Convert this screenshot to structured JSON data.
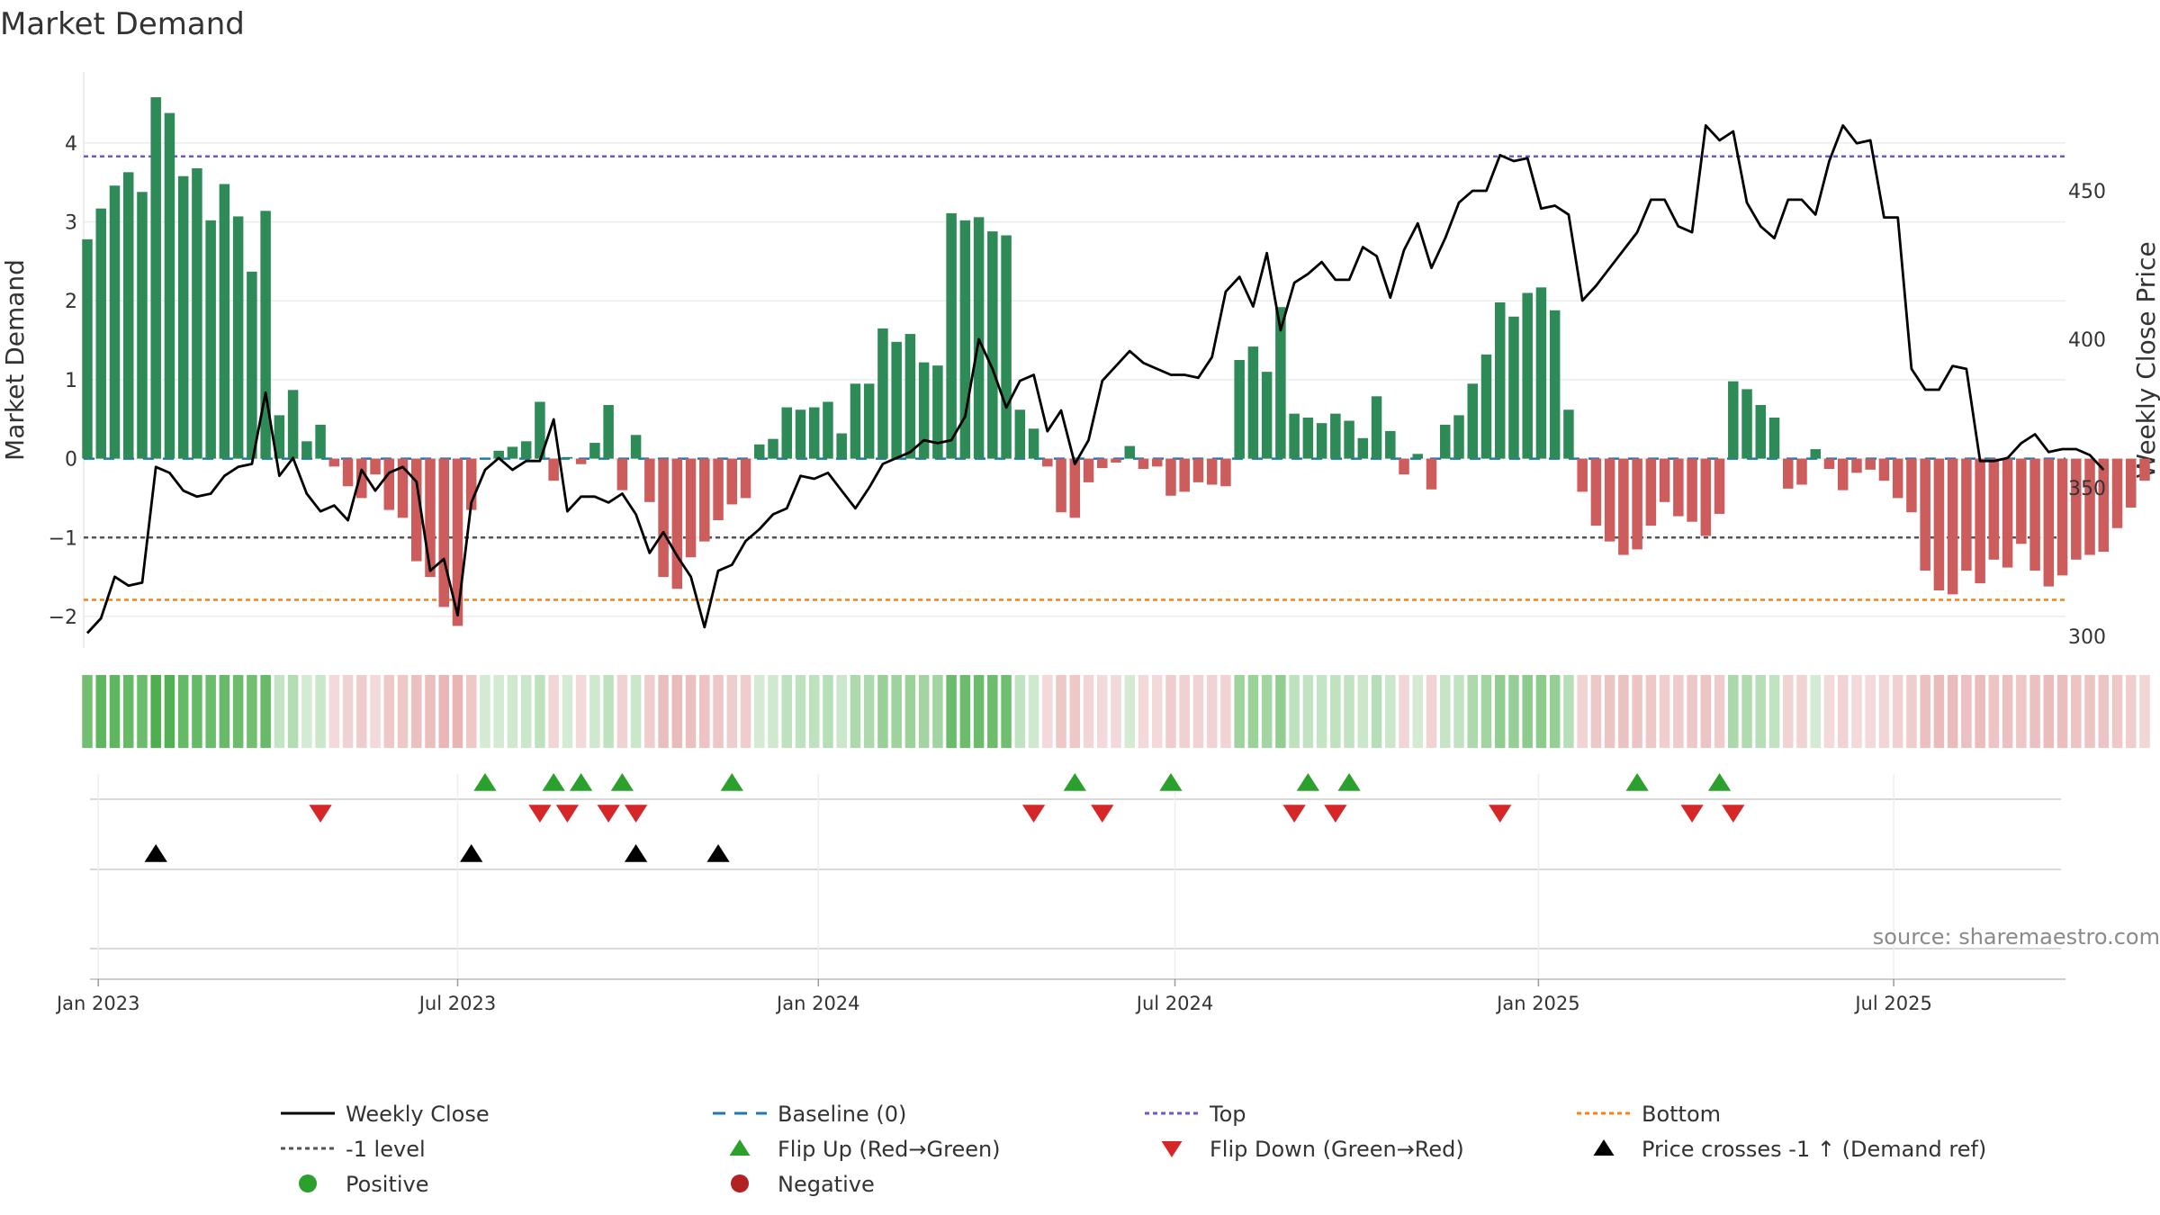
{
  "chart_data": {
    "type": "bar+line",
    "title": "Market Demand",
    "ylabel_left": "Market Demand",
    "ylabel_right": "Weekly Close Price",
    "ylim_left": [
      -2.4,
      4.9
    ],
    "ylim_right": [
      296,
      490
    ],
    "left_ticks": [
      "−2",
      "−1",
      "0",
      "1",
      "2",
      "3",
      "4"
    ],
    "left_tick_values": [
      -2,
      -1,
      0,
      1,
      2,
      3,
      4
    ],
    "right_ticks": [
      "300",
      "350",
      "400",
      "450"
    ],
    "right_tick_values": [
      300,
      350,
      400,
      450
    ],
    "x_ticks": [
      "Jan 2023",
      "Jul 2023",
      "Jan 2024",
      "Jul 2024",
      "Jan 2025",
      "Jul 2025"
    ],
    "x_tick_weeks": [
      0.8,
      27.0,
      53.3,
      79.3,
      105.8,
      131.7
    ],
    "reference_lines": {
      "top": 3.83,
      "bottom": -1.79,
      "minus_one": -1,
      "baseline": 0
    },
    "demand": [
      2.78,
      3.17,
      3.46,
      3.63,
      3.38,
      4.58,
      4.38,
      3.58,
      3.68,
      3.02,
      3.48,
      3.07,
      2.37,
      3.14,
      0.55,
      0.87,
      0.22,
      0.43,
      -0.1,
      -0.35,
      -0.5,
      -0.2,
      -0.65,
      -0.75,
      -1.3,
      -1.5,
      -1.88,
      -2.12,
      -0.65,
      0.0,
      0.1,
      0.15,
      0.22,
      0.72,
      -0.28,
      0.02,
      -0.07,
      0.2,
      0.68,
      -0.4,
      0.3,
      -0.55,
      -1.5,
      -1.65,
      -1.25,
      -1.05,
      -0.78,
      -0.58,
      -0.5,
      0.18,
      0.25,
      0.65,
      0.62,
      0.65,
      0.72,
      0.32,
      0.95,
      0.95,
      1.65,
      1.48,
      1.58,
      1.22,
      1.18,
      3.11,
      3.02,
      3.06,
      2.88,
      2.83,
      0.62,
      0.38,
      -0.1,
      -0.68,
      -0.75,
      -0.3,
      -0.12,
      -0.05,
      0.16,
      -0.13,
      -0.1,
      -0.47,
      -0.42,
      -0.3,
      -0.33,
      -0.35,
      1.25,
      1.42,
      1.1,
      1.92,
      0.57,
      0.52,
      0.45,
      0.57,
      0.48,
      0.26,
      0.79,
      0.35,
      -0.2,
      0.06,
      -0.39,
      0.43,
      0.55,
      0.95,
      1.32,
      1.98,
      1.8,
      2.1,
      2.17,
      1.88,
      0.62,
      -0.42,
      -0.85,
      -1.05,
      -1.22,
      -1.15,
      -0.85,
      -0.55,
      -0.73,
      -0.8,
      -0.98,
      -0.7,
      0.98,
      0.88,
      0.68,
      0.52,
      -0.38,
      -0.33,
      0.12,
      -0.13,
      -0.4,
      -0.18,
      -0.14,
      -0.28,
      -0.5,
      -0.68,
      -1.42,
      -1.67,
      -1.72,
      -1.42,
      -1.58,
      -1.28,
      -1.38,
      -1.08,
      -1.42,
      -1.62,
      -1.48,
      -1.28,
      -1.22,
      -1.18,
      -0.88,
      -0.62,
      -0.28
    ],
    "close": [
      301,
      306,
      320,
      317,
      318,
      357,
      355,
      349,
      347,
      348,
      354,
      357,
      358,
      382,
      354,
      360,
      348,
      342,
      344,
      339,
      356,
      349,
      355,
      357,
      352,
      322,
      326,
      307,
      345,
      356,
      360,
      356,
      359,
      359,
      373,
      342,
      347,
      347,
      345,
      348,
      341,
      328,
      335,
      327,
      320,
      303,
      322,
      324,
      332,
      336,
      341,
      343,
      354,
      353,
      355,
      349,
      343,
      350,
      358,
      360,
      362,
      366,
      365,
      366,
      374,
      400,
      390,
      377,
      386,
      388,
      369,
      376,
      358,
      366,
      386,
      391,
      396,
      392,
      390,
      388,
      388,
      387,
      394,
      416,
      421,
      411,
      429,
      403,
      419,
      422,
      426,
      420,
      420,
      431,
      428,
      414,
      430,
      439,
      424,
      434,
      446,
      450,
      450,
      462,
      460,
      461,
      444,
      445,
      442,
      413,
      418,
      424,
      430,
      436,
      447,
      447,
      438,
      436,
      472,
      467,
      470,
      446,
      438,
      434,
      447,
      447,
      442,
      460,
      472,
      466,
      467,
      441,
      441,
      390,
      383,
      383,
      391,
      390,
      359,
      359,
      360,
      365,
      368,
      362,
      363,
      363,
      361,
      356
    ],
    "heat_strip": [
      0.62,
      0.7,
      0.7,
      0.68,
      0.65,
      0.78,
      0.76,
      0.68,
      0.68,
      0.65,
      0.67,
      0.65,
      0.62,
      0.67,
      0.25,
      0.32,
      0.18,
      0.22,
      -0.2,
      -0.25,
      -0.28,
      -0.2,
      -0.3,
      -0.3,
      -0.35,
      -0.36,
      -0.4,
      -0.42,
      -0.3,
      0.18,
      0.18,
      0.2,
      0.22,
      0.28,
      -0.22,
      0.18,
      -0.2,
      0.2,
      0.28,
      -0.25,
      0.22,
      -0.28,
      -0.36,
      -0.38,
      -0.35,
      -0.33,
      -0.31,
      -0.28,
      -0.28,
      0.18,
      0.2,
      0.28,
      0.28,
      0.28,
      0.3,
      0.22,
      0.35,
      0.35,
      0.45,
      0.42,
      0.44,
      0.4,
      0.4,
      0.66,
      0.65,
      0.65,
      0.64,
      0.63,
      0.26,
      0.2,
      -0.2,
      -0.3,
      -0.3,
      -0.22,
      -0.2,
      -0.2,
      0.18,
      -0.2,
      -0.2,
      -0.28,
      -0.26,
      -0.24,
      -0.24,
      -0.24,
      0.42,
      0.44,
      0.4,
      0.48,
      0.28,
      0.26,
      0.25,
      0.27,
      0.26,
      0.22,
      0.3,
      0.22,
      -0.22,
      0.18,
      -0.24,
      0.24,
      0.26,
      0.35,
      0.4,
      0.48,
      0.46,
      0.5,
      0.5,
      0.46,
      0.3,
      -0.24,
      -0.3,
      -0.32,
      -0.34,
      -0.33,
      -0.3,
      -0.27,
      -0.29,
      -0.3,
      -0.32,
      -0.29,
      0.36,
      0.34,
      0.3,
      0.26,
      -0.24,
      -0.24,
      0.18,
      -0.2,
      -0.24,
      -0.2,
      -0.2,
      -0.22,
      -0.26,
      -0.28,
      -0.35,
      -0.38,
      -0.38,
      -0.35,
      -0.37,
      -0.33,
      -0.35,
      -0.31,
      -0.35,
      -0.37,
      -0.36,
      -0.33,
      -0.32,
      -0.32,
      -0.3,
      -0.27,
      -0.22
    ],
    "flip_up_weeks": [
      29,
      34,
      36,
      39,
      47,
      72,
      79,
      89,
      92,
      113,
      119
    ],
    "flip_down_weeks": [
      17,
      33,
      35,
      38,
      40,
      69,
      74,
      88,
      91,
      103,
      117,
      120
    ],
    "cross_up_weeks": [
      5,
      28,
      40,
      46
    ],
    "legend": [
      {
        "label": "Weekly Close",
        "style": "line",
        "color": "#000000"
      },
      {
        "label": "Baseline (0)",
        "style": "dashed",
        "color": "#1f77b4"
      },
      {
        "label": "Top",
        "style": "dotted",
        "color": "#6a5acd"
      },
      {
        "label": "Bottom",
        "style": "dotted",
        "color": "#ff7f0e"
      },
      {
        "label": "-1 level",
        "style": "dotted",
        "color": "#555555"
      },
      {
        "label": "Flip Up (Red→Green)",
        "style": "triangle-up",
        "color": "#2ca02c"
      },
      {
        "label": "Flip Down (Green→Red)",
        "style": "triangle-down",
        "color": "#d62728"
      },
      {
        "label": "Price crosses -1 ↑ (Demand ref)",
        "style": "triangle-up",
        "color": "#000000"
      },
      {
        "label": "Positive",
        "style": "circle",
        "color": "#2ca02c"
      },
      {
        "label": "Negative",
        "style": "circle",
        "color": "#b22222"
      }
    ],
    "colors": {
      "positive": "#2e8b57",
      "negative": "#cd5c5c",
      "line": "#000000",
      "top": "#6a5acd",
      "bottom": "#ff7f0e",
      "minus_one": "#555555",
      "baseline": "#1f77b4"
    }
  },
  "source": "source: sharemaestro.com"
}
